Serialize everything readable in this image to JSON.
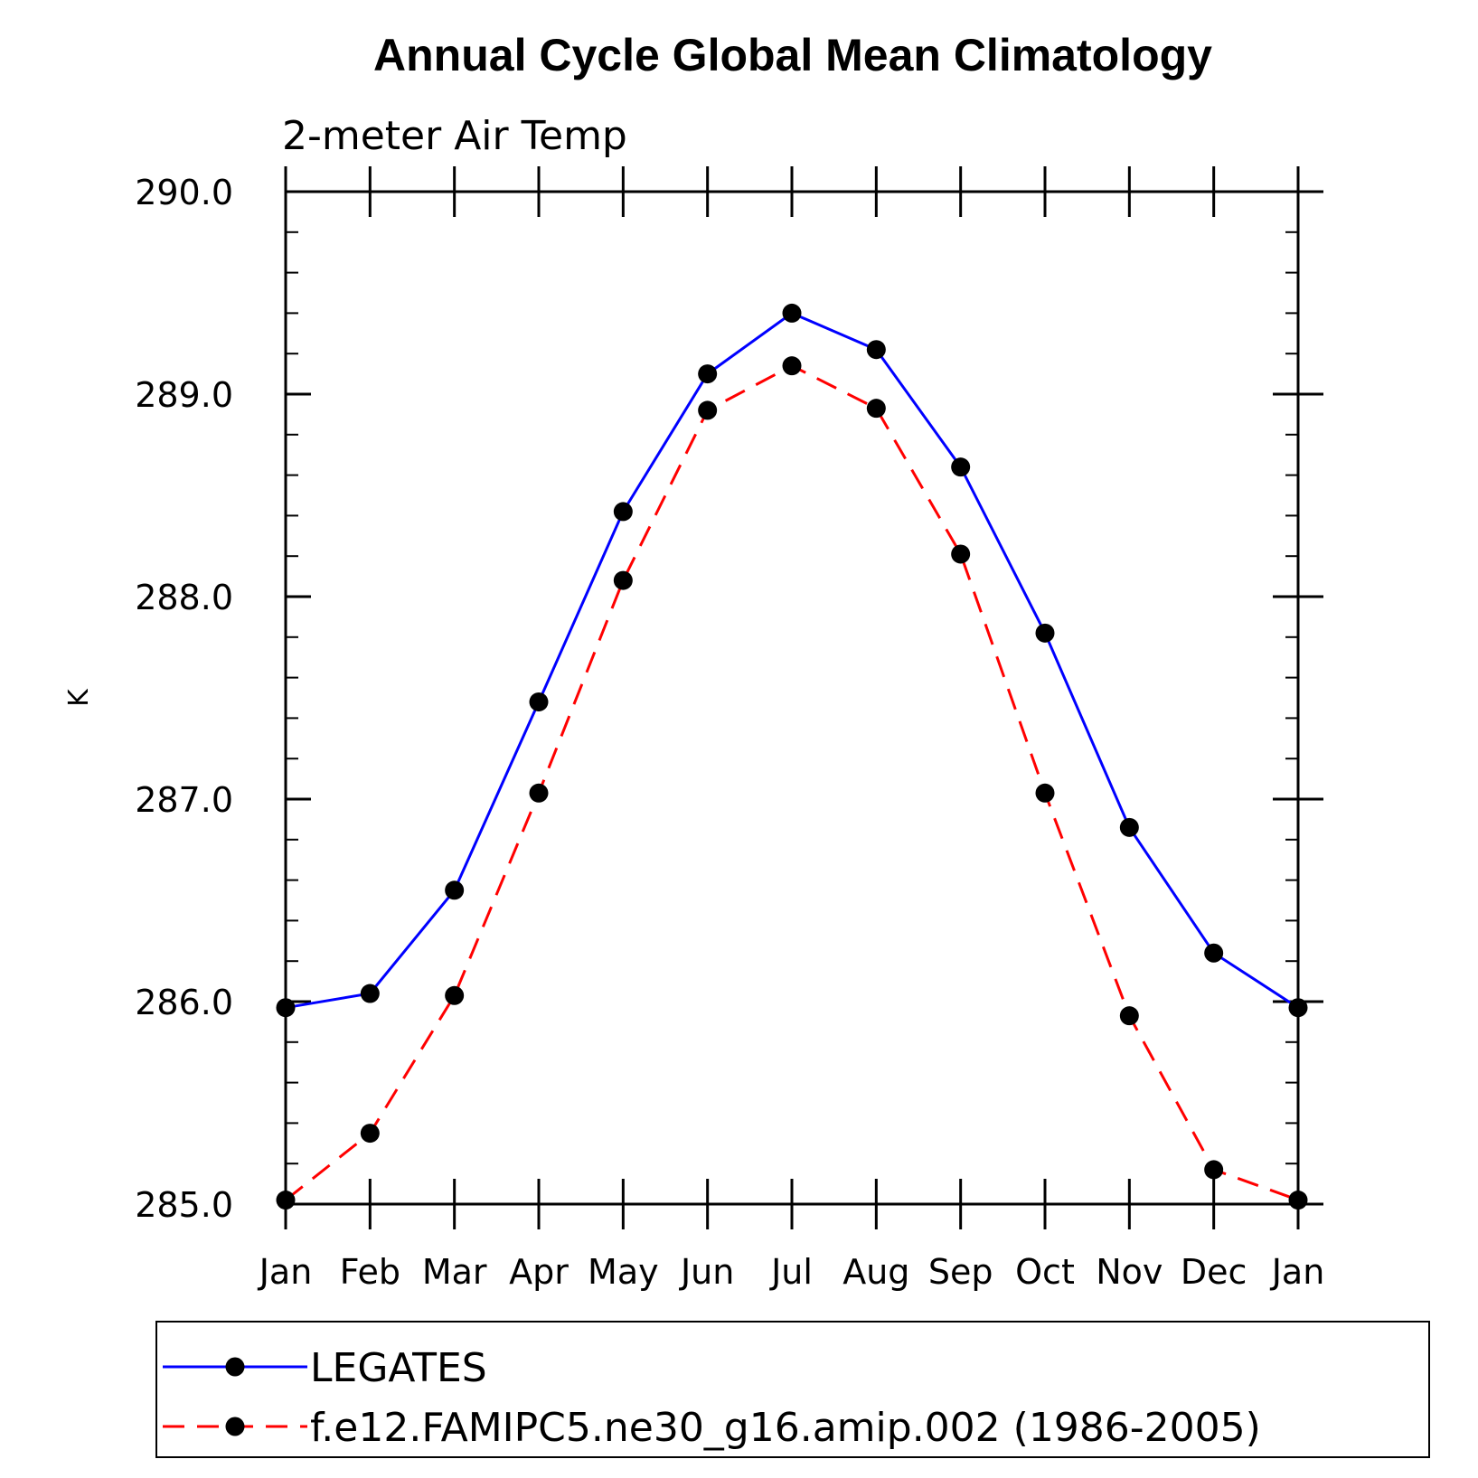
{
  "chart_data": {
    "type": "line",
    "title": "Annual Cycle Global Mean Climatology",
    "subtitle": "2-meter Air Temp",
    "xlabel": "",
    "ylabel": "K",
    "categories": [
      "Jan",
      "Feb",
      "Mar",
      "Apr",
      "May",
      "Jun",
      "Jul",
      "Aug",
      "Sep",
      "Oct",
      "Nov",
      "Dec",
      "Jan"
    ],
    "ylim": [
      285.0,
      290.0
    ],
    "yticks": [
      "285.0",
      "286.0",
      "287.0",
      "288.0",
      "289.0",
      "290.0"
    ],
    "y_minor_step": 0.2,
    "grid": false,
    "legend_position": "bottom",
    "series": [
      {
        "name": "LEGATES",
        "color": "#0000ff",
        "dash": "solid",
        "marker": "filled-circle",
        "values": [
          285.97,
          286.04,
          286.55,
          287.48,
          288.42,
          289.1,
          289.4,
          289.22,
          288.64,
          287.82,
          286.86,
          286.24,
          285.97
        ]
      },
      {
        "name": "f.e12.FAMIPC5.ne30_g16.amip.002 (1986-2005)",
        "color": "#ff0000",
        "dash": "dashed",
        "marker": "filled-circle",
        "values": [
          285.02,
          285.35,
          286.03,
          287.03,
          288.08,
          288.92,
          289.14,
          288.93,
          288.21,
          287.03,
          285.93,
          285.17,
          285.02
        ]
      }
    ]
  }
}
